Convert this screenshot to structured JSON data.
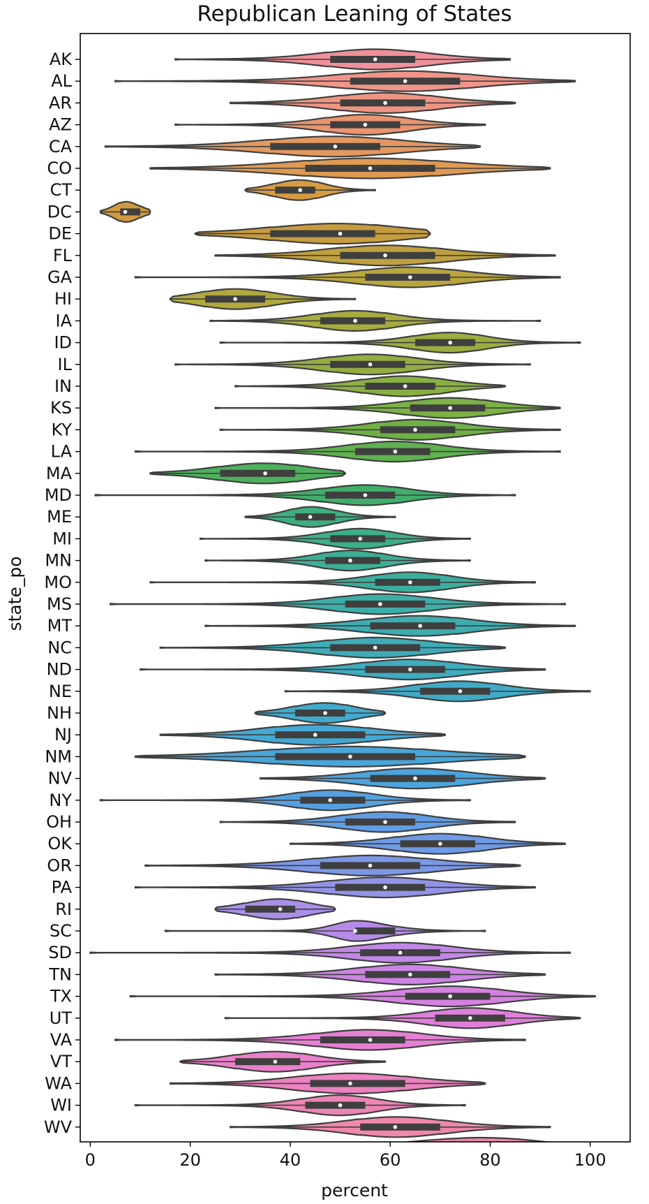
{
  "chart_data": {
    "type": "violin",
    "title": "Republican Leaning of States",
    "xlabel": "percent",
    "ylabel": "state_po",
    "xlim": [
      -2,
      108
    ],
    "xticks": [
      "0",
      "20",
      "40",
      "60",
      "80",
      "100"
    ],
    "tick_values": [
      0,
      20,
      40,
      60,
      80,
      100
    ],
    "orientation": "horizontal",
    "grid": false,
    "categories": [
      "AK",
      "AL",
      "AR",
      "AZ",
      "CA",
      "CO",
      "CT",
      "DC",
      "DE",
      "FL",
      "GA",
      "HI",
      "IA",
      "ID",
      "IL",
      "IN",
      "KS",
      "KY",
      "LA",
      "MA",
      "MD",
      "ME",
      "MI",
      "MN",
      "MO",
      "MS",
      "MT",
      "NC",
      "ND",
      "NE",
      "NH",
      "NJ",
      "NM",
      "NV",
      "NY",
      "OH",
      "OK",
      "OR",
      "PA",
      "RI",
      "SC",
      "SD",
      "TN",
      "TX",
      "UT",
      "VA",
      "VT",
      "WA",
      "WI",
      "WV"
    ],
    "series": [
      {
        "state": "AK",
        "min": 17,
        "q1": 48,
        "median": 57,
        "q3": 65,
        "max": 84,
        "color": "#f0909a"
      },
      {
        "state": "AL",
        "min": 5,
        "q1": 52,
        "median": 63,
        "q3": 74,
        "max": 97,
        "color": "#f1958a"
      },
      {
        "state": "AR",
        "min": 28,
        "q1": 50,
        "median": 59,
        "q3": 67,
        "max": 85,
        "color": "#ee9582"
      },
      {
        "state": "AZ",
        "min": 17,
        "q1": 48,
        "median": 55,
        "q3": 62,
        "max": 79,
        "color": "#ea9470"
      },
      {
        "state": "CA",
        "min": 3,
        "q1": 36,
        "median": 49,
        "q3": 58,
        "max": 78,
        "color": "#e39860"
      },
      {
        "state": "CO",
        "min": 12,
        "q1": 43,
        "median": 56,
        "q3": 69,
        "max": 92,
        "color": "#de9a52"
      },
      {
        "state": "CT",
        "min": 31,
        "q1": 37,
        "median": 42,
        "q3": 45,
        "max": 57,
        "color": "#d79b42"
      },
      {
        "state": "DC",
        "min": 2,
        "q1": 6,
        "median": 7,
        "q3": 10,
        "max": 12,
        "color": "#d19a3e"
      },
      {
        "state": "DE",
        "min": 21,
        "q1": 36,
        "median": 50,
        "q3": 57,
        "max": 68,
        "color": "#c79c3e"
      },
      {
        "state": "FL",
        "min": 25,
        "q1": 50,
        "median": 59,
        "q3": 69,
        "max": 93,
        "color": "#c0a03e"
      },
      {
        "state": "GA",
        "min": 9,
        "q1": 55,
        "median": 64,
        "q3": 72,
        "max": 94,
        "color": "#b8a53e"
      },
      {
        "state": "HI",
        "min": 16,
        "q1": 23,
        "median": 29,
        "q3": 35,
        "max": 53,
        "color": "#b0a840"
      },
      {
        "state": "IA",
        "min": 24,
        "q1": 46,
        "median": 53,
        "q3": 59,
        "max": 90,
        "color": "#a8ab40"
      },
      {
        "state": "ID",
        "min": 26,
        "q1": 65,
        "median": 72,
        "q3": 77,
        "max": 98,
        "color": "#9dac40"
      },
      {
        "state": "IL",
        "min": 17,
        "q1": 48,
        "median": 56,
        "q3": 63,
        "max": 88,
        "color": "#94ad42"
      },
      {
        "state": "IN",
        "min": 29,
        "q1": 55,
        "median": 63,
        "q3": 69,
        "max": 83,
        "color": "#88b043"
      },
      {
        "state": "KS",
        "min": 25,
        "q1": 64,
        "median": 72,
        "q3": 79,
        "max": 94,
        "color": "#7cb144"
      },
      {
        "state": "KY",
        "min": 26,
        "q1": 58,
        "median": 65,
        "q3": 73,
        "max": 94,
        "color": "#6fb146"
      },
      {
        "state": "LA",
        "min": 9,
        "q1": 53,
        "median": 61,
        "q3": 68,
        "max": 94,
        "color": "#60b14f"
      },
      {
        "state": "MA",
        "min": 12,
        "q1": 26,
        "median": 35,
        "q3": 41,
        "max": 51,
        "color": "#4cb05c"
      },
      {
        "state": "MD",
        "min": 1,
        "q1": 47,
        "median": 55,
        "q3": 61,
        "max": 85,
        "color": "#40ae6b"
      },
      {
        "state": "ME",
        "min": 31,
        "q1": 41,
        "median": 44,
        "q3": 49,
        "max": 61,
        "color": "#3eae7d"
      },
      {
        "state": "MI",
        "min": 22,
        "q1": 48,
        "median": 54,
        "q3": 59,
        "max": 76,
        "color": "#3daf8a"
      },
      {
        "state": "MN",
        "min": 23,
        "q1": 47,
        "median": 52,
        "q3": 58,
        "max": 76,
        "color": "#3dae95"
      },
      {
        "state": "MO",
        "min": 12,
        "q1": 57,
        "median": 64,
        "q3": 70,
        "max": 89,
        "color": "#3dae9e"
      },
      {
        "state": "MS",
        "min": 4,
        "q1": 51,
        "median": 58,
        "q3": 67,
        "max": 95,
        "color": "#3daea7"
      },
      {
        "state": "MT",
        "min": 23,
        "q1": 56,
        "median": 66,
        "q3": 73,
        "max": 97,
        "color": "#3dadb0"
      },
      {
        "state": "NC",
        "min": 14,
        "q1": 48,
        "median": 57,
        "q3": 66,
        "max": 83,
        "color": "#3eacb8"
      },
      {
        "state": "ND",
        "min": 10,
        "q1": 55,
        "median": 64,
        "q3": 71,
        "max": 91,
        "color": "#3facbf"
      },
      {
        "state": "NE",
        "min": 39,
        "q1": 66,
        "median": 74,
        "q3": 80,
        "max": 100,
        "color": "#40abc6"
      },
      {
        "state": "NH",
        "min": 33,
        "q1": 41,
        "median": 47,
        "q3": 51,
        "max": 59,
        "color": "#42aacd"
      },
      {
        "state": "NJ",
        "min": 14,
        "q1": 37,
        "median": 45,
        "q3": 55,
        "max": 71,
        "color": "#45a8d4"
      },
      {
        "state": "NM",
        "min": 9,
        "q1": 37,
        "median": 52,
        "q3": 65,
        "max": 87,
        "color": "#48a6da"
      },
      {
        "state": "NV",
        "min": 34,
        "q1": 56,
        "median": 65,
        "q3": 73,
        "max": 91,
        "color": "#4ca4df"
      },
      {
        "state": "NY",
        "min": 2,
        "q1": 42,
        "median": 48,
        "q3": 55,
        "max": 76,
        "color": "#54a1e2"
      },
      {
        "state": "OH",
        "min": 26,
        "q1": 51,
        "median": 59,
        "q3": 65,
        "max": 85,
        "color": "#609de4"
      },
      {
        "state": "OK",
        "min": 40,
        "q1": 62,
        "median": 70,
        "q3": 77,
        "max": 95,
        "color": "#6e9ae6"
      },
      {
        "state": "OR",
        "min": 11,
        "q1": 46,
        "median": 56,
        "q3": 66,
        "max": 86,
        "color": "#7c97e7"
      },
      {
        "state": "PA",
        "min": 9,
        "q1": 49,
        "median": 59,
        "q3": 67,
        "max": 89,
        "color": "#9294e8"
      },
      {
        "state": "RI",
        "min": 25,
        "q1": 31,
        "median": 38,
        "q3": 41,
        "max": 49,
        "color": "#a98fe9"
      },
      {
        "state": "SC",
        "min": 15,
        "q1": 53,
        "median": 53,
        "q3": 61,
        "max": 79,
        "color": "#b58be8"
      },
      {
        "state": "SD",
        "min": 0,
        "q1": 54,
        "median": 62,
        "q3": 70,
        "max": 96,
        "color": "#c287e6"
      },
      {
        "state": "TN",
        "min": 25,
        "q1": 55,
        "median": 64,
        "q3": 72,
        "max": 91,
        "color": "#cd84e4"
      },
      {
        "state": "TX",
        "min": 8,
        "q1": 63,
        "median": 72,
        "q3": 80,
        "max": 101,
        "color": "#d681e1"
      },
      {
        "state": "UT",
        "min": 27,
        "q1": 69,
        "median": 76,
        "q3": 83,
        "max": 98,
        "color": "#e07fdb"
      },
      {
        "state": "VA",
        "min": 5,
        "q1": 46,
        "median": 56,
        "q3": 63,
        "max": 87,
        "color": "#e67fd4"
      },
      {
        "state": "VT",
        "min": 18,
        "q1": 29,
        "median": 37,
        "q3": 42,
        "max": 59,
        "color": "#eb80cb"
      },
      {
        "state": "WA",
        "min": 16,
        "q1": 44,
        "median": 52,
        "q3": 63,
        "max": 79,
        "color": "#ec82c0"
      },
      {
        "state": "WI",
        "min": 9,
        "q1": 43,
        "median": 50,
        "q3": 55,
        "max": 75,
        "color": "#ee84b6"
      },
      {
        "state": "WV",
        "min": 28,
        "q1": 54,
        "median": 61,
        "q3": 70,
        "max": 92,
        "color": "#f087ac"
      }
    ]
  }
}
